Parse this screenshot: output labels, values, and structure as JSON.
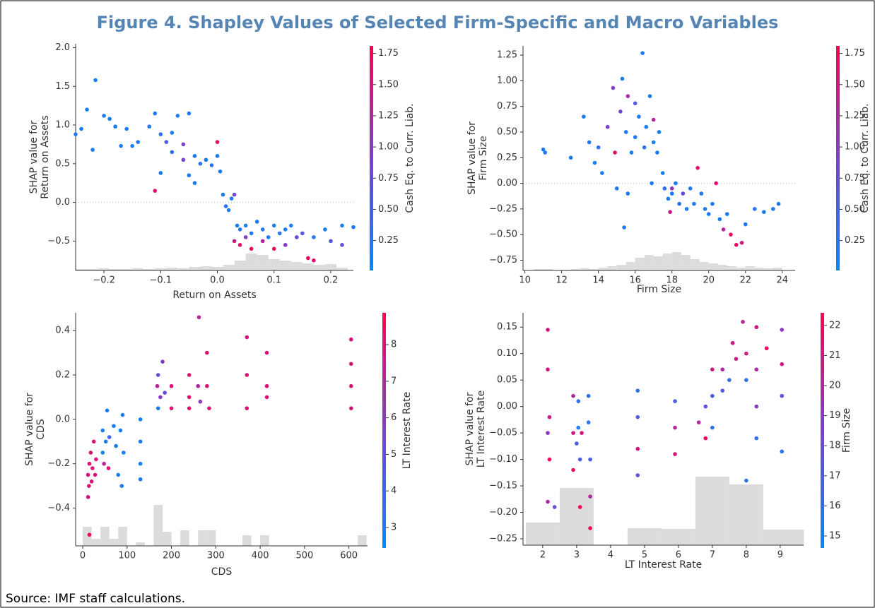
{
  "figure_title": "Figure 4. Shapley Values of Selected Firm-Specific and Macro Variables",
  "source": "Source: IMF staff calculations.",
  "colormap": [
    "#008bfb",
    "#7c3fd2",
    "#ff0052"
  ],
  "hist_color": "#dcdcdc",
  "chart_data": [
    {
      "type": "scatter",
      "x_label": "Return on Assets",
      "y_label": [
        "SHAP value for",
        "Return on Assets"
      ],
      "colorbar_label": "Cash Eq. to Curr. Liab.",
      "xlim": [
        -0.25,
        0.24
      ],
      "ylim": [
        -0.88,
        2.05
      ],
      "clim": [
        0.01,
        1.81
      ],
      "zero_line": true,
      "xticks": [
        {
          "value": -0.2,
          "label": "−0.2"
        },
        {
          "value": -0.1,
          "label": "−0.1"
        },
        {
          "value": 0,
          "label": "0.0"
        },
        0.1,
        0.2
      ],
      "yticks": [
        {
          "value": -0.5,
          "label": "−0.5"
        },
        {
          "value": 0,
          "label": "0.0"
        },
        0.5,
        {
          "value": 1,
          "label": "1.0"
        },
        1.5,
        {
          "value": 2,
          "label": "2.0"
        }
      ],
      "cticks": [
        0.25,
        {
          "value": 0.5,
          "label": "0.50"
        },
        0.75,
        {
          "value": 1,
          "label": "1.00"
        },
        1.25,
        {
          "value": 1.5,
          "label": "1.50"
        },
        1.75
      ],
      "x": [
        -0.25,
        -0.24,
        -0.23,
        -0.22,
        -0.215,
        -0.2,
        -0.19,
        -0.18,
        -0.17,
        -0.16,
        -0.15,
        -0.14,
        -0.12,
        -0.11,
        -0.1,
        -0.09,
        -0.08,
        -0.07,
        -0.06,
        -0.05,
        -0.1,
        -0.08,
        -0.04,
        -0.03,
        -0.02,
        -0.01,
        0,
        0.005,
        0,
        -0.05,
        -0.06,
        -0.11,
        -0.04,
        0.01,
        0.015,
        0.02,
        0.025,
        0.03,
        0.035,
        0.04,
        0.05,
        0.06,
        0.07,
        0.08,
        0.09,
        0.1,
        0.11,
        0.12,
        0.13,
        0.15,
        0.17,
        0.19,
        0.22,
        0.24,
        0.04,
        0.06,
        0.08,
        0.1,
        0.12,
        0.14,
        0.16,
        0.17,
        0.2,
        0.22,
        0.05,
        0.03
      ],
      "values": [
        0.88,
        0.95,
        1.2,
        0.68,
        1.58,
        1.12,
        1.08,
        0.98,
        0.73,
        0.95,
        0.73,
        0.78,
        0.98,
        1.15,
        0.88,
        0.78,
        0.9,
        1.12,
        0.75,
        1.15,
        0.38,
        0.65,
        0.6,
        0.5,
        0.55,
        0.48,
        0.6,
        0.4,
        0.78,
        0.35,
        0.55,
        0.15,
        0.25,
        0.1,
        -0.05,
        -0.1,
        0.05,
        0.1,
        -0.3,
        -0.35,
        -0.3,
        -0.4,
        -0.25,
        -0.35,
        -0.45,
        -0.3,
        -0.4,
        -0.35,
        -0.3,
        -0.4,
        -0.45,
        -0.35,
        -0.3,
        -0.32,
        -0.55,
        -0.6,
        -0.5,
        -0.6,
        -0.55,
        -0.45,
        -0.72,
        -0.75,
        -0.5,
        -0.55,
        -0.45,
        -0.5
      ],
      "color_values": [
        0.2,
        0.15,
        0.2,
        0.2,
        0.15,
        0.2,
        0.15,
        0.2,
        0.2,
        0.2,
        0.15,
        0.2,
        0.25,
        0.2,
        0.3,
        0.6,
        0.2,
        0.2,
        0.9,
        0.2,
        0.2,
        0.3,
        0.2,
        0.25,
        0.2,
        0.3,
        0.2,
        0.2,
        1.7,
        0.2,
        0.9,
        1.6,
        0.2,
        0.2,
        0.3,
        0.2,
        0.2,
        0.9,
        0.2,
        0.3,
        0.2,
        0.2,
        0.2,
        0.25,
        0.2,
        0.2,
        0.3,
        0.2,
        0.2,
        0.6,
        0.2,
        0.2,
        0.2,
        0.2,
        1.6,
        1.7,
        1.3,
        1.7,
        1.0,
        0.8,
        1.7,
        1.6,
        0.6,
        0.7,
        0.9,
        1.4
      ],
      "hist_bins": [
        -0.25,
        -0.23,
        -0.21,
        -0.19,
        -0.17,
        -0.15,
        -0.13,
        -0.11,
        -0.09,
        -0.07,
        -0.05,
        -0.03,
        -0.01,
        0.01,
        0.03,
        0.05,
        0.07,
        0.09,
        0.11,
        0.13,
        0.15,
        0.17,
        0.19,
        0.21,
        0.23
      ],
      "hist_counts": [
        2,
        2,
        3,
        2,
        2,
        3,
        2,
        3,
        4,
        3,
        5,
        6,
        5,
        8,
        14,
        24,
        22,
        16,
        14,
        12,
        10,
        8,
        9,
        4
      ]
    },
    {
      "type": "scatter",
      "x_label": "Firm Size",
      "y_label": [
        "SHAP value for",
        "Firm Size"
      ],
      "colorbar_label": "Cash Eq. to Curr. Liab.",
      "xlim": [
        9.9,
        24.7
      ],
      "ylim": [
        -0.85,
        1.34
      ],
      "clim": [
        0.01,
        1.81
      ],
      "zero_line": true,
      "xticks": [
        10,
        12,
        14,
        16,
        18,
        20,
        22,
        24
      ],
      "yticks": [
        {
          "value": -0.75,
          "label": "−0.75"
        },
        {
          "value": -0.5,
          "label": "−0.50"
        },
        {
          "value": -0.25,
          "label": "−0.25"
        },
        {
          "value": 0,
          "label": "0.00"
        },
        0.25,
        {
          "value": 0.5,
          "label": "0.50"
        },
        0.75,
        {
          "value": 1,
          "label": "1.00"
        },
        1.25
      ],
      "cticks": [
        0.25,
        {
          "value": 0.5,
          "label": "0.50"
        },
        0.75,
        {
          "value": 1,
          "label": "1.00"
        },
        1.25,
        {
          "value": 1.5,
          "label": "1.50"
        },
        1.75
      ],
      "x": [
        11,
        11.1,
        12.5,
        13.2,
        13.5,
        13.8,
        14,
        14.2,
        14.5,
        14.8,
        15,
        15.2,
        15.3,
        15.5,
        15.6,
        15.8,
        16,
        16,
        16.2,
        16.4,
        16.5,
        16.6,
        16.8,
        17,
        17,
        17.2,
        17.3,
        15.4,
        14.9,
        17.5,
        17.6,
        17.8,
        18,
        18,
        18.2,
        18.4,
        18.6,
        18.8,
        19,
        19.2,
        19.4,
        19.6,
        19.8,
        20,
        20.2,
        20.4,
        20.6,
        20.8,
        21,
        21.2,
        21.5,
        21.8,
        22,
        22.5,
        23,
        23.5,
        23.8,
        17.9,
        16.9,
        15.6
      ],
      "values": [
        0.33,
        0.3,
        0.25,
        0.65,
        0.4,
        0.2,
        0.35,
        0.1,
        0.55,
        0.93,
        -0.05,
        0.7,
        1.02,
        0.5,
        0.85,
        0.3,
        0.45,
        0.78,
        0.65,
        1.27,
        0.35,
        0.55,
        0.85,
        0.4,
        0.62,
        0.3,
        0.5,
        -0.43,
        0.3,
        0.1,
        -0.05,
        -0.15,
        -0.1,
        -0.05,
        0,
        -0.2,
        -0.1,
        -0.25,
        -0.05,
        -0.2,
        0.15,
        -0.1,
        -0.25,
        -0.3,
        -0.2,
        0,
        -0.35,
        -0.45,
        -0.3,
        -0.5,
        -0.6,
        -0.58,
        -0.4,
        -0.25,
        -0.28,
        -0.25,
        -0.2,
        -0.28,
        0,
        -0.1
      ],
      "color_values": [
        0.2,
        0.2,
        0.2,
        0.2,
        0.2,
        0.2,
        0.3,
        0.2,
        0.9,
        0.9,
        0.2,
        0.8,
        0.2,
        0.2,
        1.2,
        0.2,
        0.2,
        0.6,
        0.2,
        0.2,
        0.3,
        0.2,
        0.2,
        0.2,
        1.3,
        0.2,
        0.2,
        0.2,
        1.6,
        0.2,
        0.3,
        0.2,
        0.2,
        1.1,
        0.2,
        0.3,
        0.8,
        0.2,
        0.2,
        0.2,
        1.7,
        0.2,
        0.2,
        0.2,
        0.2,
        1.6,
        0.2,
        1.3,
        0.2,
        1.7,
        1.7,
        1.5,
        0.2,
        0.2,
        0.2,
        0.2,
        0.2,
        1.4,
        0.2,
        0.2
      ],
      "hist_bins": [
        10,
        10.5,
        11,
        11.5,
        12,
        12.5,
        13,
        13.5,
        14,
        14.5,
        15,
        15.5,
        16,
        16.5,
        17,
        17.5,
        18,
        18.5,
        19,
        19.5,
        20,
        20.5,
        21,
        21.5,
        22,
        22.5,
        23,
        23.5,
        24
      ],
      "hist_counts": [
        0,
        2,
        2,
        0,
        1,
        2,
        3,
        2,
        4,
        6,
        8,
        12,
        18,
        22,
        20,
        24,
        26,
        22,
        16,
        12,
        10,
        8,
        6,
        4,
        6,
        4,
        3,
        4
      ]
    },
    {
      "type": "scatter",
      "x_label": "CDS",
      "y_label": [
        "SHAP value for",
        "CDS"
      ],
      "colorbar_label": "LT Interest Rate",
      "xlim": [
        -16,
        642
      ],
      "ylim": [
        -0.57,
        0.48
      ],
      "clim": [
        2.44,
        8.87
      ],
      "zero_line": false,
      "xticks": [
        0,
        100,
        200,
        300,
        400,
        500,
        600
      ],
      "yticks": [
        {
          "value": -0.4,
          "label": "−0.4"
        },
        {
          "value": -0.2,
          "label": "−0.2"
        },
        {
          "value": 0,
          "label": "0.0"
        },
        0.2,
        0.4
      ],
      "cticks": [
        3,
        4,
        5,
        6,
        7,
        8
      ],
      "x": [
        12,
        12,
        14,
        15,
        18,
        20,
        22,
        25,
        28,
        30,
        15,
        45,
        45,
        48,
        52,
        55,
        58,
        60,
        70,
        75,
        80,
        85,
        90,
        92,
        88,
        130,
        130,
        130,
        130,
        168,
        170,
        170,
        175,
        180,
        185,
        200,
        200,
        240,
        240,
        240,
        260,
        262,
        265,
        280,
        280,
        285,
        370,
        370,
        370,
        415,
        415,
        415,
        605,
        605,
        605,
        605
      ],
      "values": [
        -0.25,
        -0.35,
        -0.3,
        -0.2,
        -0.15,
        -0.28,
        -0.22,
        -0.1,
        -0.25,
        -0.18,
        -0.52,
        -0.05,
        -0.15,
        -0.2,
        -0.1,
        0.04,
        -0.22,
        -0.08,
        -0.03,
        -0.12,
        -0.25,
        -0.05,
        0.02,
        -0.15,
        -0.3,
        0,
        -0.2,
        -0.1,
        -0.27,
        0.15,
        0.05,
        0.2,
        0.1,
        0.26,
        0.12,
        0.15,
        0.05,
        0.2,
        0.1,
        0.05,
        0.15,
        0.46,
        0.08,
        0.3,
        0.15,
        0.05,
        0.37,
        0.2,
        0.05,
        0.3,
        0.15,
        0.1,
        0.36,
        0.25,
        0.15,
        0.05
      ],
      "color_values": [
        8,
        8,
        8,
        8,
        8,
        8,
        8,
        8,
        8,
        8,
        8.5,
        3,
        3,
        7,
        3,
        3,
        8,
        4,
        3,
        3,
        3,
        3,
        3,
        3,
        3,
        3,
        3,
        3,
        3,
        7,
        3,
        5,
        6,
        6,
        5,
        8,
        8,
        8,
        8,
        8,
        7,
        7,
        6,
        8,
        8,
        8,
        8,
        8,
        8,
        8,
        8,
        8,
        8,
        8,
        8,
        8
      ],
      "hist_bins": [
        0,
        20,
        40,
        60,
        80,
        100,
        120,
        140,
        160,
        180,
        200,
        220,
        240,
        260,
        280,
        300,
        320,
        340,
        360,
        380,
        400,
        420,
        440,
        460,
        480,
        500,
        520,
        540,
        560,
        580,
        600,
        620,
        640
      ],
      "hist_counts": [
        27,
        10,
        27,
        10,
        27,
        0,
        5,
        0,
        58,
        20,
        0,
        22,
        0,
        22,
        22,
        0,
        0,
        0,
        15,
        0,
        15,
        0,
        0,
        0,
        0,
        0,
        0,
        0,
        0,
        0,
        0,
        15
      ]
    },
    {
      "type": "scatter",
      "x_label": "LT Interest Rate",
      "y_label": [
        "SHAP value for",
        "LT Interest Rate"
      ],
      "colorbar_label": "Firm Size",
      "xlim": [
        1.42,
        9.69
      ],
      "ylim": [
        -0.262,
        0.177
      ],
      "clim": [
        14.6,
        22.42
      ],
      "zero_line": false,
      "xticks": [
        2,
        3,
        4,
        5,
        6,
        7,
        8,
        9
      ],
      "yticks": [
        {
          "value": -0.25,
          "label": "−0.25"
        },
        {
          "value": -0.2,
          "label": "−0.20"
        },
        {
          "value": -0.15,
          "label": "−0.15"
        },
        {
          "value": -0.1,
          "label": "−0.10"
        },
        {
          "value": -0.05,
          "label": "−0.05"
        },
        {
          "value": 0,
          "label": "0.00"
        },
        0.05,
        {
          "value": 0.1,
          "label": "0.10"
        },
        0.15
      ],
      "cticks": [
        15,
        16,
        17,
        18,
        19,
        20,
        21,
        22
      ],
      "x": [
        2.15,
        2.15,
        2.15,
        2.2,
        2.2,
        2.15,
        2.35,
        2.9,
        2.9,
        2.9,
        3,
        3.05,
        3.05,
        3.1,
        3.15,
        3.1,
        3.35,
        3.35,
        3.4,
        3.4,
        3.4,
        4.8,
        4.8,
        4.8,
        4.8,
        5.9,
        5.9,
        5.9,
        6.6,
        6.8,
        6.8,
        7,
        7,
        7,
        7.3,
        7.3,
        7.5,
        7.6,
        7.7,
        7.9,
        8,
        8,
        8,
        8.3,
        8.3,
        8.3,
        8.3,
        8.6,
        9.05,
        9.05,
        9.05,
        9.05
      ],
      "values": [
        0.145,
        0.07,
        -0.05,
        -0.02,
        -0.1,
        -0.18,
        -0.19,
        0.02,
        -0.05,
        -0.12,
        -0.07,
        0.01,
        -0.04,
        -0.1,
        -0.05,
        -0.19,
        0.02,
        -0.03,
        -0.1,
        -0.17,
        -0.23,
        0.03,
        -0.02,
        -0.08,
        -0.13,
        0.01,
        -0.04,
        -0.09,
        -0.03,
        -0.06,
        0,
        0.07,
        0.02,
        -0.04,
        0.07,
        0.03,
        0.05,
        0.12,
        0.09,
        0.16,
        0.1,
        0.05,
        -0.14,
        0.15,
        0.07,
        0,
        -0.06,
        0.11,
        0.145,
        0.08,
        0.02,
        -0.085
      ],
      "color_values": [
        21,
        21,
        19,
        21,
        22,
        20,
        18,
        20,
        21,
        22,
        17,
        16,
        15.5,
        17,
        21,
        22,
        16,
        16,
        17,
        20,
        22,
        16,
        17,
        21,
        18,
        17,
        20,
        21,
        20,
        22,
        18,
        21,
        17,
        16,
        20,
        17,
        16,
        21,
        21,
        20,
        21,
        16,
        16,
        21,
        20,
        19,
        16,
        22,
        19,
        21,
        18,
        16
      ],
      "hist_bins": [
        1.5,
        2.5,
        3.5,
        4.5,
        5.5,
        6.5,
        7.5,
        8.5,
        9.7
      ],
      "hist_counts": [
        32,
        81,
        0,
        24,
        23,
        97,
        86,
        22
      ]
    }
  ]
}
